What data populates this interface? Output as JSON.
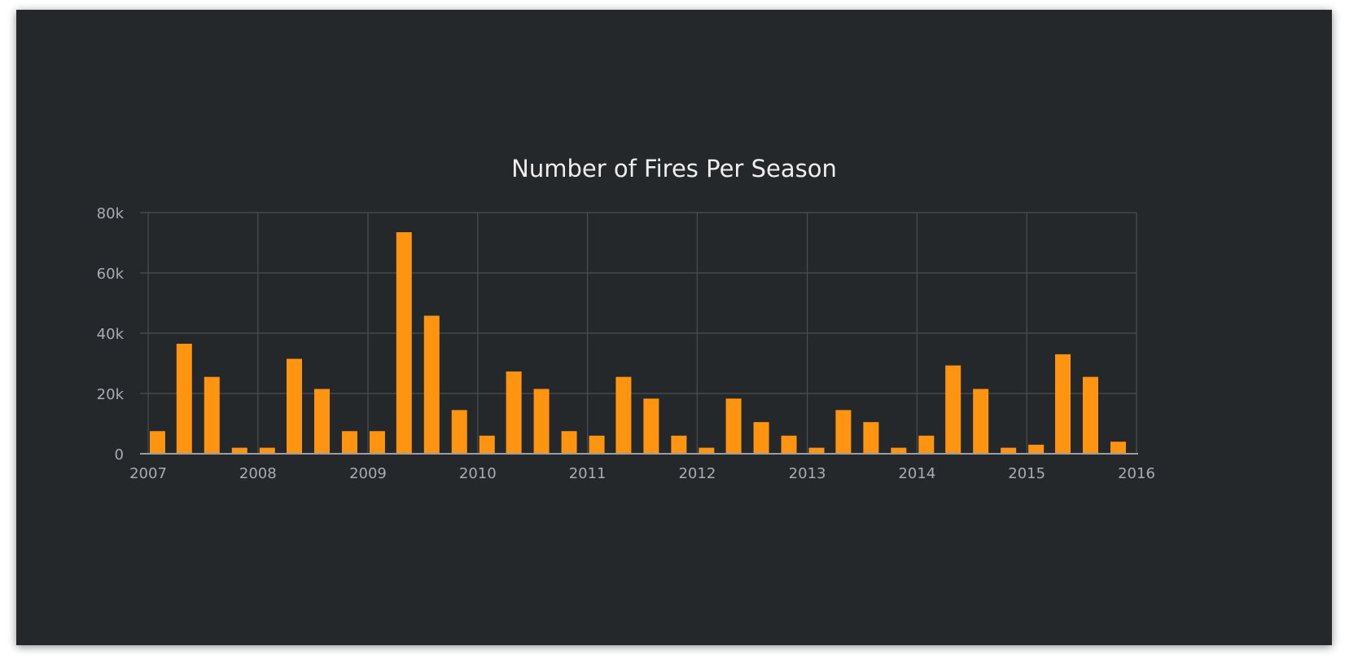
{
  "chart_data": {
    "type": "bar",
    "title": "Number of Fires Per Season",
    "xlabel": "",
    "ylabel": "",
    "ylim": [
      0,
      80000
    ],
    "y_ticks": [
      0,
      20000,
      40000,
      60000,
      80000
    ],
    "y_tick_labels": [
      "0",
      "20k",
      "40k",
      "60k",
      "80k"
    ],
    "x_range": [
      "2007-01-01",
      "2016-01-01"
    ],
    "x_ticks": [
      "2007-01-01",
      "2008-01-01",
      "2009-01-01",
      "2010-01-01",
      "2011-01-01",
      "2012-01-01",
      "2013-01-01",
      "2014-01-01",
      "2015-01-01",
      "2016-01-01"
    ],
    "x_tick_labels": [
      "2007",
      "2008",
      "2009",
      "2010",
      "2011",
      "2012",
      "2013",
      "2014",
      "2015",
      "2016"
    ],
    "grid": true,
    "legend": "none",
    "bar_color": "#ff9410",
    "x": [
      "2007-02-01",
      "2007-05-01",
      "2007-08-01",
      "2007-11-01",
      "2008-02-01",
      "2008-05-01",
      "2008-08-01",
      "2008-11-01",
      "2009-02-01",
      "2009-05-01",
      "2009-08-01",
      "2009-11-01",
      "2010-02-01",
      "2010-05-01",
      "2010-08-01",
      "2010-11-01",
      "2011-02-01",
      "2011-05-01",
      "2011-08-01",
      "2011-11-01",
      "2012-02-01",
      "2012-05-01",
      "2012-08-01",
      "2012-11-01",
      "2013-02-01",
      "2013-05-01",
      "2013-08-01",
      "2013-11-01",
      "2014-02-01",
      "2014-05-01",
      "2014-08-01",
      "2014-11-01",
      "2015-02-01",
      "2015-05-01",
      "2015-08-01",
      "2015-11-01"
    ],
    "values": [
      7500,
      36500,
      25500,
      2000,
      2000,
      31500,
      21500,
      7500,
      7500,
      73500,
      45800,
      14500,
      6000,
      27300,
      21500,
      7500,
      6000,
      25500,
      18300,
      6000,
      2000,
      18300,
      10500,
      6000,
      2000,
      14500,
      10500,
      2000,
      6000,
      29300,
      21500,
      2000,
      3000,
      33000,
      25500,
      4000
    ]
  }
}
